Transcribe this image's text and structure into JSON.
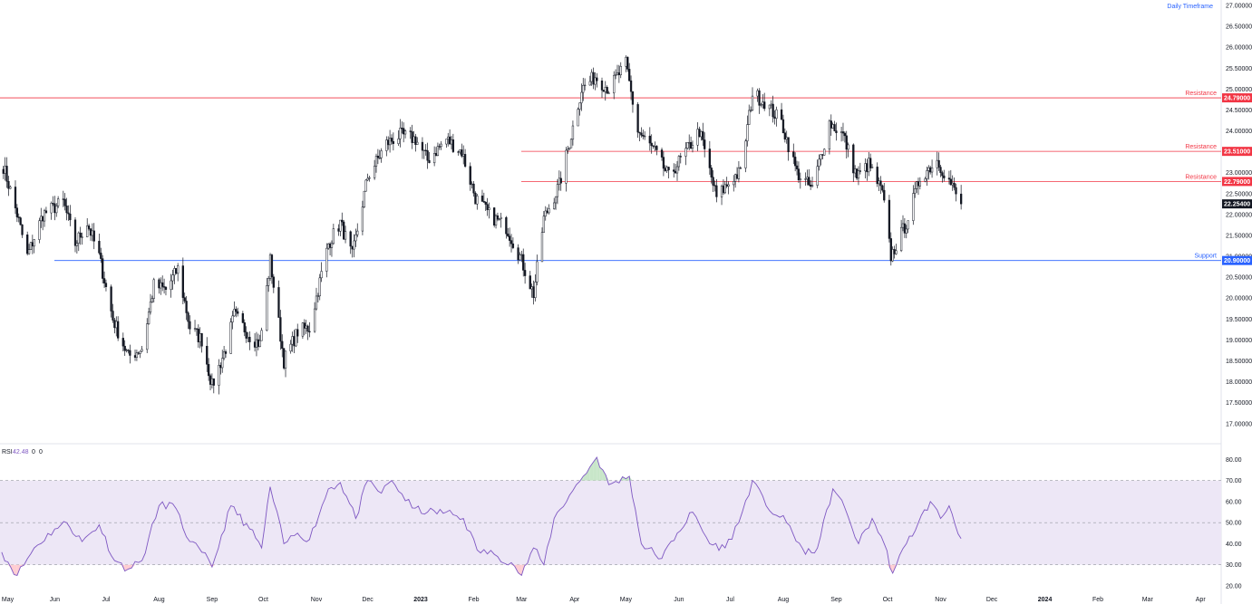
{
  "timeframe_label": "Daily Timeframe",
  "colors": {
    "resistance": "#f23645",
    "support": "#2962ff",
    "price_badge": "#131722",
    "candle": "#131722",
    "rsi_line": "#7e57c2",
    "rsi_band": "#ede7f6",
    "overbought_fill": "#c8e6c9",
    "oversold_fill": "#ffcdd2",
    "grid": "#e0e3eb"
  },
  "rsi": {
    "label": "RSI",
    "value": "42.48",
    "extra1": "0",
    "extra2": "0"
  },
  "chart_data": [
    {
      "type": "candlestick",
      "title": "",
      "x_tick_labels": [
        "May",
        "Jun",
        "Jul",
        "Aug",
        "Sep",
        "Oct",
        "Nov",
        "Dec",
        "2023",
        "Feb",
        "Mar",
        "Apr",
        "May",
        "Jun",
        "Jul",
        "Aug",
        "Sep",
        "Oct",
        "Nov",
        "Dec",
        "2024",
        "Feb",
        "Mar",
        "Apr"
      ],
      "y_tick_labels": [
        "27.00000",
        "26.50000",
        "26.00000",
        "25.50000",
        "25.00000",
        "24.50000",
        "24.00000",
        "23.50000",
        "23.00000",
        "22.50000",
        "22.00000",
        "21.50000",
        "21.00000",
        "20.50000",
        "20.00000",
        "19.50000",
        "19.00000",
        "18.50000",
        "18.00000",
        "17.50000",
        "17.00000"
      ],
      "ylim": [
        16.8,
        27.0
      ],
      "last_price": "22.25400",
      "last_value": 22.254,
      "horizontal_levels": [
        {
          "label": "Resistance",
          "value": 24.79,
          "value_label": "24.79000",
          "kind": "resistance"
        },
        {
          "label": "Resistance",
          "value": 23.51,
          "value_label": "23.51000",
          "kind": "resistance"
        },
        {
          "label": "Resistance",
          "value": 22.79,
          "value_label": "22.79000",
          "kind": "resistance"
        },
        {
          "label": "Support",
          "value": 20.9,
          "value_label": "20.90000",
          "kind": "support"
        }
      ],
      "close_series": [
        {
          "date": "2022-05-01",
          "value": 23.3
        },
        {
          "date": "2022-05-10",
          "value": 22.0
        },
        {
          "date": "2022-05-16",
          "value": 21.0
        },
        {
          "date": "2022-05-25",
          "value": 22.0
        },
        {
          "date": "2022-06-06",
          "value": 22.3
        },
        {
          "date": "2022-06-13",
          "value": 21.3
        },
        {
          "date": "2022-06-20",
          "value": 21.8
        },
        {
          "date": "2022-06-27",
          "value": 21.0
        },
        {
          "date": "2022-07-05",
          "value": 19.5
        },
        {
          "date": "2022-07-14",
          "value": 18.6
        },
        {
          "date": "2022-07-22",
          "value": 18.8
        },
        {
          "date": "2022-07-29",
          "value": 20.3
        },
        {
          "date": "2022-08-05",
          "value": 20.2
        },
        {
          "date": "2022-08-12",
          "value": 20.7
        },
        {
          "date": "2022-08-19",
          "value": 19.3
        },
        {
          "date": "2022-08-26",
          "value": 19.0
        },
        {
          "date": "2022-09-01",
          "value": 17.9
        },
        {
          "date": "2022-09-09",
          "value": 18.8
        },
        {
          "date": "2022-09-14",
          "value": 19.6
        },
        {
          "date": "2022-09-23",
          "value": 19.1
        },
        {
          "date": "2022-09-29",
          "value": 18.9
        },
        {
          "date": "2022-10-05",
          "value": 20.9
        },
        {
          "date": "2022-10-13",
          "value": 18.5
        },
        {
          "date": "2022-10-21",
          "value": 19.2
        },
        {
          "date": "2022-10-28",
          "value": 19.3
        },
        {
          "date": "2022-11-08",
          "value": 21.3
        },
        {
          "date": "2022-11-15",
          "value": 21.8
        },
        {
          "date": "2022-11-22",
          "value": 21.0
        },
        {
          "date": "2022-12-01",
          "value": 22.9
        },
        {
          "date": "2022-12-12",
          "value": 23.7
        },
        {
          "date": "2022-12-20",
          "value": 23.9
        },
        {
          "date": "2022-12-29",
          "value": 23.8
        },
        {
          "date": "2023-01-05",
          "value": 23.3
        },
        {
          "date": "2023-01-16",
          "value": 23.8
        },
        {
          "date": "2023-01-25",
          "value": 23.5
        },
        {
          "date": "2023-02-02",
          "value": 22.4
        },
        {
          "date": "2023-02-10",
          "value": 22.0
        },
        {
          "date": "2023-02-20",
          "value": 21.7
        },
        {
          "date": "2023-02-28",
          "value": 21.0
        },
        {
          "date": "2023-03-08",
          "value": 20.1
        },
        {
          "date": "2023-03-14",
          "value": 21.9
        },
        {
          "date": "2023-03-23",
          "value": 22.7
        },
        {
          "date": "2023-03-30",
          "value": 23.9
        },
        {
          "date": "2023-04-05",
          "value": 25.0
        },
        {
          "date": "2023-04-13",
          "value": 25.3
        },
        {
          "date": "2023-04-21",
          "value": 25.0
        },
        {
          "date": "2023-05-01",
          "value": 25.6
        },
        {
          "date": "2023-05-08",
          "value": 24.0
        },
        {
          "date": "2023-05-18",
          "value": 23.5
        },
        {
          "date": "2023-05-26",
          "value": 22.9
        },
        {
          "date": "2023-06-05",
          "value": 23.5
        },
        {
          "date": "2023-06-13",
          "value": 24.0
        },
        {
          "date": "2023-06-23",
          "value": 22.4
        },
        {
          "date": "2023-07-03",
          "value": 22.9
        },
        {
          "date": "2023-07-07",
          "value": 23.0
        },
        {
          "date": "2023-07-14",
          "value": 24.9
        },
        {
          "date": "2023-07-21",
          "value": 24.7
        },
        {
          "date": "2023-07-31",
          "value": 24.2
        },
        {
          "date": "2023-08-09",
          "value": 23.0
        },
        {
          "date": "2023-08-18",
          "value": 22.6
        },
        {
          "date": "2023-08-28",
          "value": 24.2
        },
        {
          "date": "2023-09-05",
          "value": 23.9
        },
        {
          "date": "2023-09-13",
          "value": 22.9
        },
        {
          "date": "2023-09-20",
          "value": 23.2
        },
        {
          "date": "2023-09-28",
          "value": 22.5
        },
        {
          "date": "2023-10-03",
          "value": 21.0
        },
        {
          "date": "2023-10-12",
          "value": 21.8
        },
        {
          "date": "2023-10-20",
          "value": 22.9
        },
        {
          "date": "2023-10-30",
          "value": 23.3
        },
        {
          "date": "2023-11-06",
          "value": 22.8
        },
        {
          "date": "2023-11-13",
          "value": 22.254
        }
      ]
    },
    {
      "type": "line",
      "title": "RSI",
      "y_tick_labels": [
        "80.00",
        "70.00",
        "60.00",
        "50.00",
        "40.00",
        "30.00",
        "20.00"
      ],
      "ylim": [
        17,
        84
      ],
      "band": [
        30,
        70
      ],
      "midline": 50,
      "series": [
        {
          "name": "RSI",
          "points": [
            {
              "date": "2022-05-01",
              "value": 36
            },
            {
              "date": "2022-05-10",
              "value": 25
            },
            {
              "date": "2022-05-20",
              "value": 38
            },
            {
              "date": "2022-06-01",
              "value": 47
            },
            {
              "date": "2022-06-08",
              "value": 50
            },
            {
              "date": "2022-06-17",
              "value": 41
            },
            {
              "date": "2022-06-27",
              "value": 49
            },
            {
              "date": "2022-07-06",
              "value": 32
            },
            {
              "date": "2022-07-14",
              "value": 28
            },
            {
              "date": "2022-07-22",
              "value": 32
            },
            {
              "date": "2022-08-01",
              "value": 58
            },
            {
              "date": "2022-08-09",
              "value": 59
            },
            {
              "date": "2022-08-19",
              "value": 41
            },
            {
              "date": "2022-08-26",
              "value": 36
            },
            {
              "date": "2022-09-01",
              "value": 29
            },
            {
              "date": "2022-09-12",
              "value": 58
            },
            {
              "date": "2022-09-23",
              "value": 47
            },
            {
              "date": "2022-09-30",
              "value": 38
            },
            {
              "date": "2022-10-05",
              "value": 67
            },
            {
              "date": "2022-10-13",
              "value": 40
            },
            {
              "date": "2022-10-21",
              "value": 45
            },
            {
              "date": "2022-10-28",
              "value": 42
            },
            {
              "date": "2022-11-08",
              "value": 66
            },
            {
              "date": "2022-11-15",
              "value": 69
            },
            {
              "date": "2022-11-24",
              "value": 52
            },
            {
              "date": "2022-12-01",
              "value": 70
            },
            {
              "date": "2022-12-09",
              "value": 64
            },
            {
              "date": "2022-12-15",
              "value": 70
            },
            {
              "date": "2022-12-27",
              "value": 57
            },
            {
              "date": "2023-01-05",
              "value": 55
            },
            {
              "date": "2023-01-16",
              "value": 55
            },
            {
              "date": "2023-01-26",
              "value": 52
            },
            {
              "date": "2023-02-03",
              "value": 37
            },
            {
              "date": "2023-02-13",
              "value": 35
            },
            {
              "date": "2023-02-23",
              "value": 31
            },
            {
              "date": "2023-03-01",
              "value": 25
            },
            {
              "date": "2023-03-08",
              "value": 38
            },
            {
              "date": "2023-03-14",
              "value": 30
            },
            {
              "date": "2023-03-20",
              "value": 52
            },
            {
              "date": "2023-03-29",
              "value": 63
            },
            {
              "date": "2023-04-06",
              "value": 72
            },
            {
              "date": "2023-04-14",
              "value": 81
            },
            {
              "date": "2023-04-21",
              "value": 68
            },
            {
              "date": "2023-05-03",
              "value": 72
            },
            {
              "date": "2023-05-10",
              "value": 40
            },
            {
              "date": "2023-05-22",
              "value": 33
            },
            {
              "date": "2023-05-31",
              "value": 45
            },
            {
              "date": "2023-06-09",
              "value": 55
            },
            {
              "date": "2023-06-19",
              "value": 40
            },
            {
              "date": "2023-06-28",
              "value": 38
            },
            {
              "date": "2023-07-06",
              "value": 50
            },
            {
              "date": "2023-07-14",
              "value": 70
            },
            {
              "date": "2023-07-22",
              "value": 58
            },
            {
              "date": "2023-08-03",
              "value": 50
            },
            {
              "date": "2023-08-14",
              "value": 35
            },
            {
              "date": "2023-08-21",
              "value": 38
            },
            {
              "date": "2023-08-30",
              "value": 66
            },
            {
              "date": "2023-09-06",
              "value": 57
            },
            {
              "date": "2023-09-14",
              "value": 40
            },
            {
              "date": "2023-09-22",
              "value": 52
            },
            {
              "date": "2023-09-29",
              "value": 40
            },
            {
              "date": "2023-10-04",
              "value": 26
            },
            {
              "date": "2023-10-12",
              "value": 40
            },
            {
              "date": "2023-10-19",
              "value": 50
            },
            {
              "date": "2023-10-26",
              "value": 60
            },
            {
              "date": "2023-11-01",
              "value": 52
            },
            {
              "date": "2023-11-06",
              "value": 58
            },
            {
              "date": "2023-11-13",
              "value": 42.48
            }
          ]
        }
      ]
    }
  ]
}
